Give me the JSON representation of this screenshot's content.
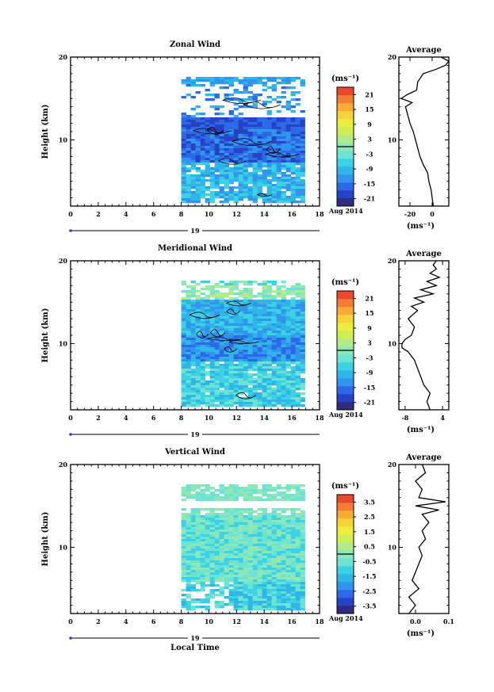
{
  "colors": {
    "scale": [
      "#2e2b80",
      "#2743c5",
      "#2c69e8",
      "#2f95ee",
      "#2fb6e6",
      "#3cd2e6",
      "#6de3d1",
      "#8ee8b6",
      "#b0ec8a",
      "#cfee54",
      "#eeee3c",
      "#f8d23a",
      "#f8ac36",
      "#f27d33",
      "#e94a2e"
    ]
  },
  "chart_data": [
    {
      "type": "heatmap",
      "title": "Zonal Wind",
      "ylabel": "Height (km)",
      "x_ticks": [
        "0",
        "2",
        "4",
        "6",
        "8",
        "10",
        "12",
        "14",
        "16",
        "18"
      ],
      "y_ticks": [
        "10",
        "20"
      ],
      "xlim": [
        0,
        18
      ],
      "ylim": [
        2,
        20
      ],
      "data_x_range": [
        8,
        16.8
      ],
      "date_label": "19",
      "date_suffix": "Aug 2014",
      "colorbar": {
        "unit": "(ms⁻¹)",
        "ticks": [
          "21",
          "15",
          "9",
          "3",
          "-3",
          "-9",
          "-15",
          "-21"
        ],
        "range": [
          -24,
          24
        ]
      },
      "profile": {
        "title": "Average",
        "x_ticks": [
          "-20",
          "0"
        ],
        "xlim": [
          -30,
          15
        ],
        "xlabel": "(ms⁻¹)",
        "y_ticks": [
          "10",
          "20"
        ],
        "heights": [
          2,
          3,
          4,
          5,
          6,
          7,
          8,
          9,
          10,
          11,
          12,
          13,
          14,
          14.5,
          15,
          15.5,
          16,
          17,
          18,
          18.5,
          19,
          19.5,
          20
        ],
        "values": [
          1,
          0,
          -1,
          -3,
          -4,
          -8,
          -11,
          -13,
          -15,
          -17,
          -20,
          -22,
          -24,
          -18,
          -28,
          -22,
          -14,
          -13,
          -8,
          3,
          12,
          15,
          8
        ]
      }
    },
    {
      "type": "heatmap",
      "title": "Meridional Wind",
      "ylabel": "Height (km)",
      "x_ticks": [
        "0",
        "2",
        "4",
        "6",
        "8",
        "10",
        "12",
        "14",
        "16",
        "18"
      ],
      "y_ticks": [
        "10",
        "20"
      ],
      "xlim": [
        0,
        18
      ],
      "ylim": [
        2,
        20
      ],
      "data_x_range": [
        8,
        16.8
      ],
      "date_label": "19",
      "date_suffix": "Aug 2014",
      "colorbar": {
        "unit": "(ms⁻¹)",
        "ticks": [
          "21",
          "15",
          "9",
          "3",
          "-3",
          "-9",
          "-15",
          "-21"
        ],
        "range": [
          -24,
          24
        ]
      },
      "profile": {
        "title": "Average",
        "x_ticks": [
          "-8",
          "4"
        ],
        "xlim": [
          -10,
          6
        ],
        "xlabel": "(ms⁻¹)",
        "y_ticks": [
          "10",
          "20"
        ],
        "heights": [
          2,
          3,
          4,
          5,
          6,
          7,
          8,
          9,
          9.5,
          10,
          10.5,
          11,
          12,
          13,
          14,
          14.5,
          15,
          15.5,
          16,
          16.5,
          17,
          17.5,
          18,
          18.5,
          19,
          19.5,
          20
        ],
        "values": [
          0,
          -1,
          0,
          -2,
          -3,
          -4,
          -5,
          -7,
          -9,
          -9,
          -8,
          -6,
          -5,
          -7,
          -4,
          -6,
          -2,
          -5,
          1,
          -3,
          2,
          -1,
          3,
          0,
          2,
          1,
          2
        ]
      }
    },
    {
      "type": "heatmap",
      "title": "Vertical Wind",
      "ylabel": "Height (km)",
      "xlabel": "Local Time",
      "x_ticks": [
        "0",
        "2",
        "4",
        "6",
        "8",
        "10",
        "12",
        "14",
        "16",
        "18"
      ],
      "y_ticks": [
        "10",
        "20"
      ],
      "xlim": [
        0,
        18
      ],
      "ylim": [
        2,
        20
      ],
      "data_x_range": [
        8,
        16.8
      ],
      "date_label": "19",
      "date_suffix": "Aug 2014",
      "colorbar": {
        "unit": "(ms⁻¹)",
        "ticks": [
          "3.5",
          "2.5",
          "1.5",
          "0.5",
          "-0.5",
          "-1.5",
          "-2.5",
          "-3.5"
        ],
        "range": [
          -4,
          4
        ]
      },
      "profile": {
        "title": "Average",
        "x_ticks": [
          "0.0",
          "0.1"
        ],
        "xlim": [
          -0.05,
          0.1
        ],
        "xlabel": "(ms⁻¹)",
        "y_ticks": [
          "10",
          "20"
        ],
        "heights": [
          2,
          3,
          4,
          5,
          6,
          7,
          8,
          9,
          10,
          11,
          12,
          13,
          14,
          14.5,
          15,
          15.5,
          16,
          17,
          18,
          19,
          20
        ],
        "values": [
          -0.02,
          0.0,
          -0.02,
          0.01,
          -0.01,
          0.0,
          0.01,
          0.02,
          0.01,
          0.03,
          0.02,
          0.04,
          0.02,
          0.07,
          0.0,
          0.09,
          0.01,
          0.02,
          0.0,
          0.03,
          0.02
        ]
      }
    }
  ]
}
